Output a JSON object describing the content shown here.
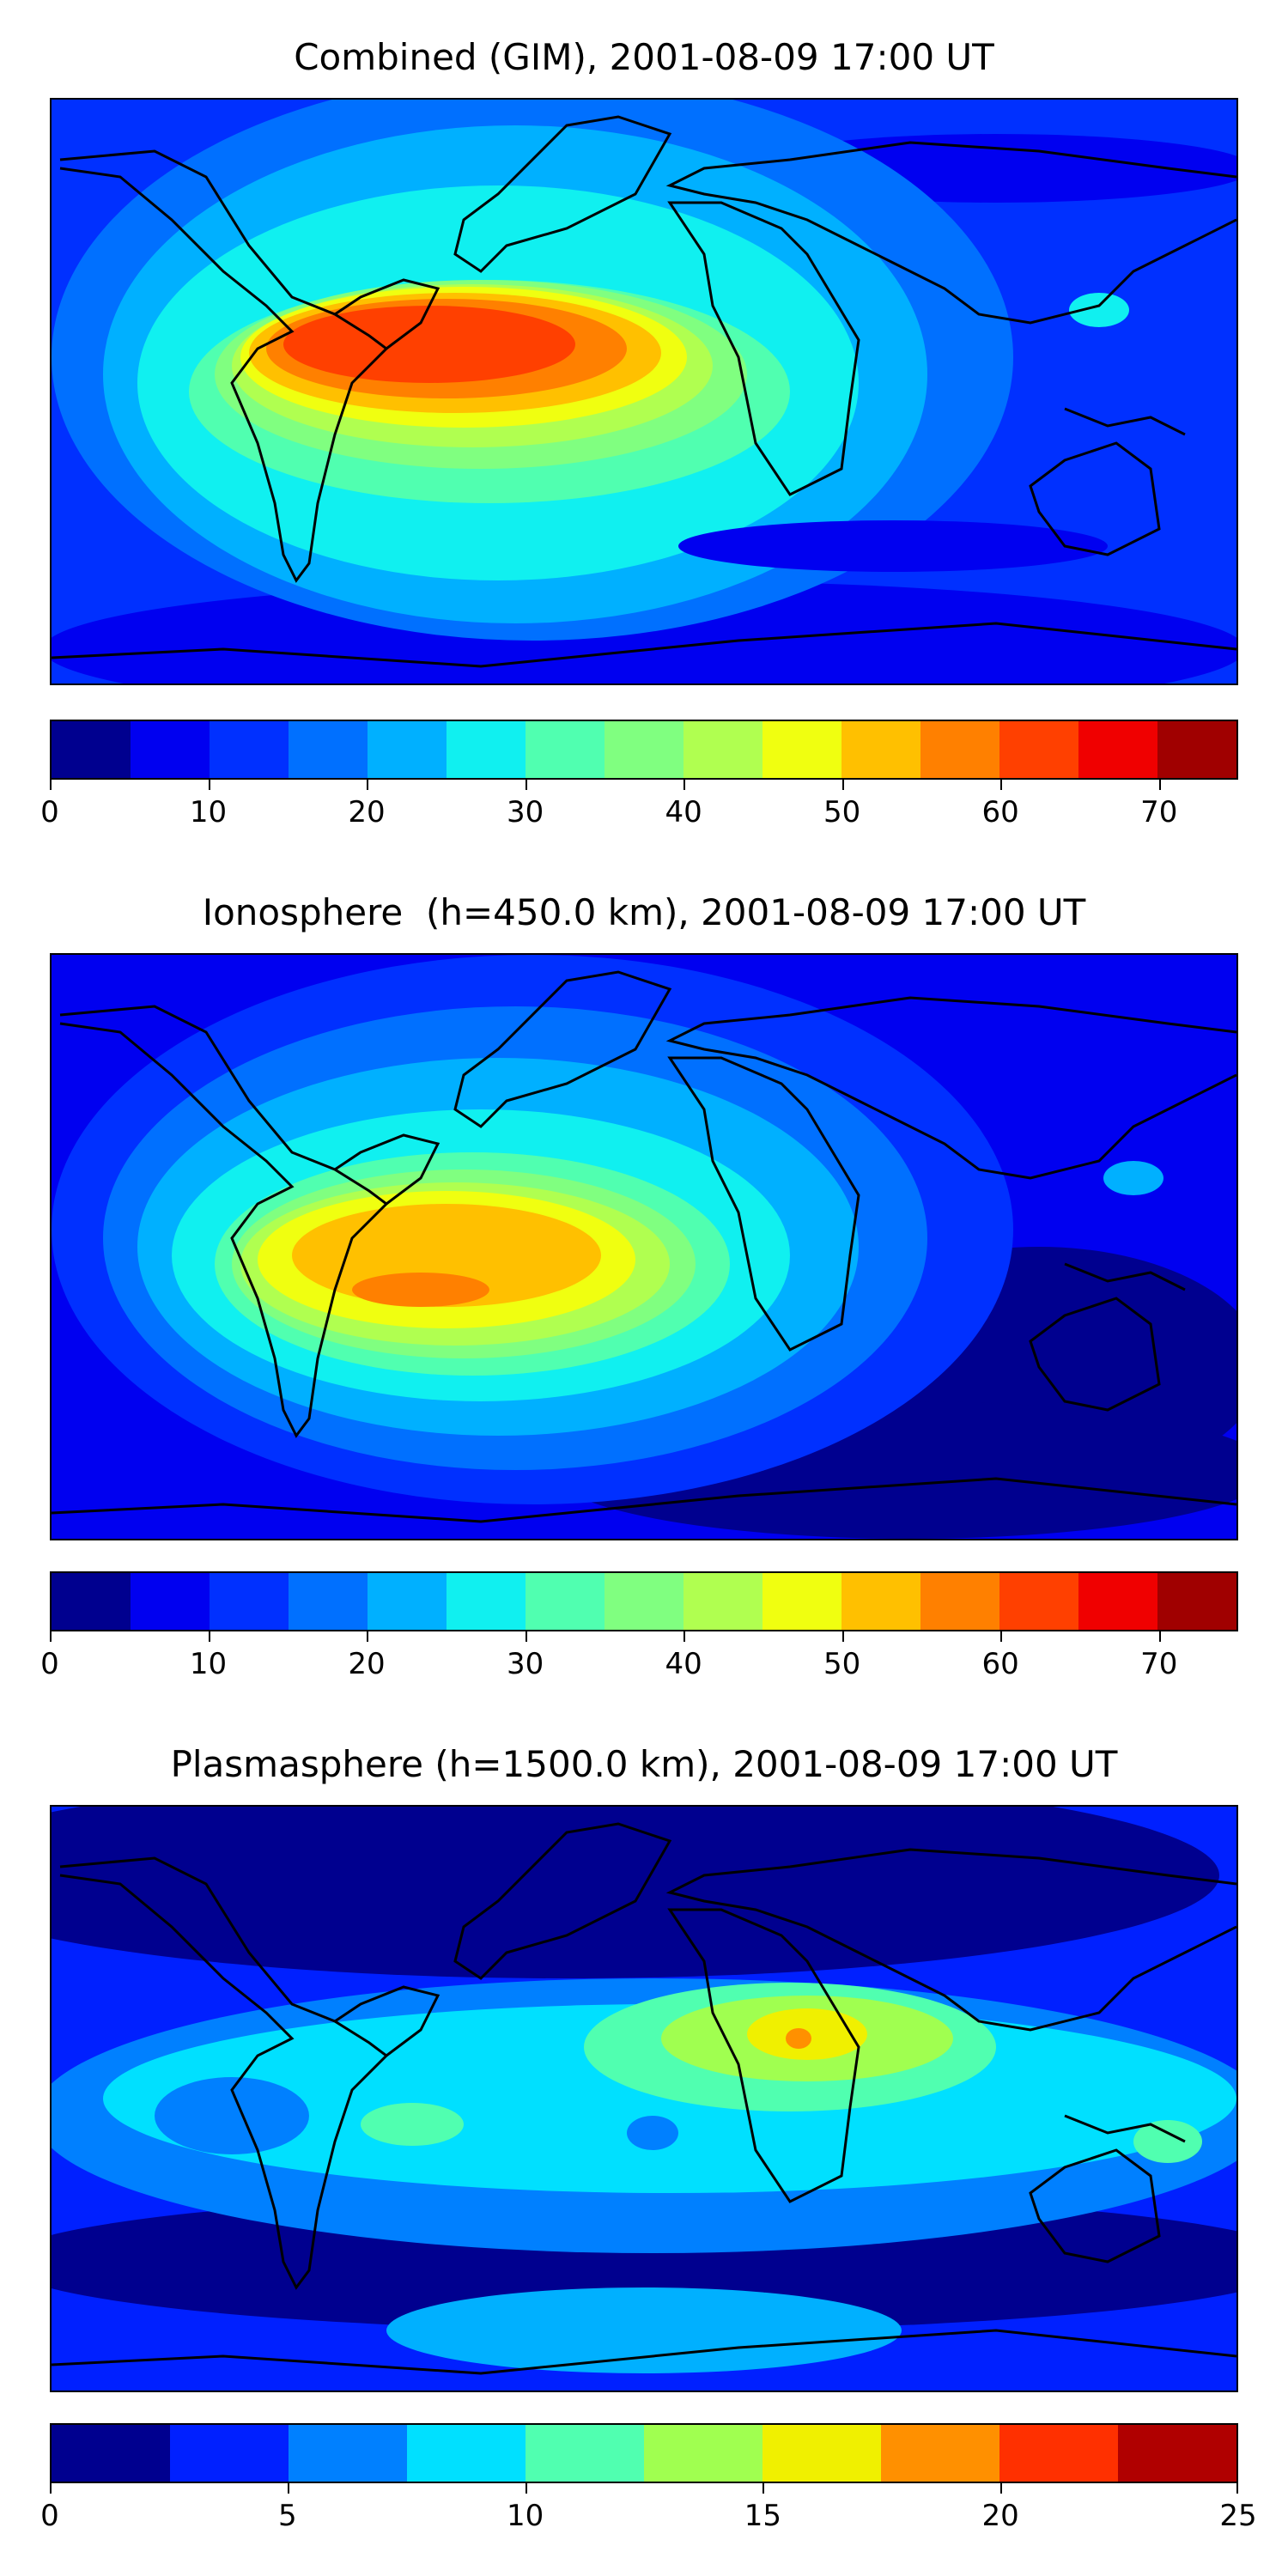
{
  "panels": [
    {
      "id": "combined",
      "title": "Combined (GIM), 2001-08-09 17:00 UT",
      "colorbar": {
        "min": 0,
        "max": 75,
        "step": 5,
        "tick_values": [
          0,
          10,
          20,
          30,
          40,
          50,
          60,
          70
        ],
        "tick_labels": [
          "0",
          "10",
          "20",
          "30",
          "40",
          "50",
          "60",
          "70"
        ]
      }
    },
    {
      "id": "ionosphere",
      "title": "Ionosphere  (h=450.0 km), 2001-08-09 17:00 UT",
      "colorbar": {
        "min": 0,
        "max": 75,
        "step": 5,
        "tick_values": [
          0,
          10,
          20,
          30,
          40,
          50,
          60,
          70
        ],
        "tick_labels": [
          "0",
          "10",
          "20",
          "30",
          "40",
          "50",
          "60",
          "70"
        ]
      }
    },
    {
      "id": "plasmasphere",
      "title": "Plasmasphere (h=1500.0 km), 2001-08-09 17:00 UT",
      "colorbar": {
        "min": 0,
        "max": 25,
        "step": 2.5,
        "tick_values": [
          0,
          5,
          10,
          15,
          20,
          25
        ],
        "tick_labels": [
          "0",
          "5",
          "10",
          "15",
          "20",
          "25"
        ]
      }
    }
  ],
  "colormap": [
    "#00008f",
    "#0000f0",
    "#0030ff",
    "#0070ff",
    "#00b0ff",
    "#10f0f0",
    "#50ffb0",
    "#80ff80",
    "#b0ff50",
    "#f0ff10",
    "#ffc000",
    "#ff8000",
    "#ff4000",
    "#f00000",
    "#a00000"
  ],
  "colormap_10": [
    "#00008f",
    "#0020ff",
    "#0080ff",
    "#00e0ff",
    "#50ffb0",
    "#a0ff50",
    "#f0f000",
    "#ff9000",
    "#ff3000",
    "#b00000"
  ]
}
